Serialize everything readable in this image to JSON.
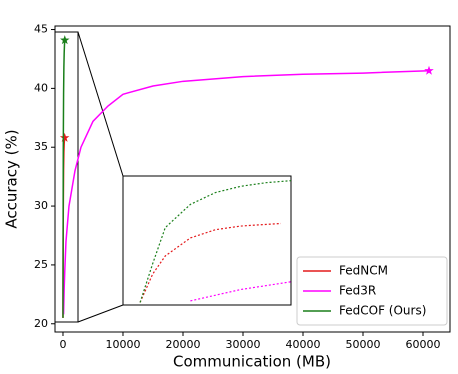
{
  "chart_data": {
    "type": "line",
    "xlabel": "Communication (MB)",
    "ylabel": "Accuracy (%)",
    "xlim": [
      -1330,
      64500
    ],
    "ylim": [
      19.3,
      45.3
    ],
    "xticks": [
      0,
      10000,
      20000,
      30000,
      40000,
      50000,
      60000
    ],
    "yticks": [
      20,
      25,
      30,
      35,
      40,
      45
    ],
    "legend": "lower right",
    "inset": {
      "xlim": [
        -34,
        300
      ],
      "ylim": [
        20,
        45
      ]
    },
    "series": [
      {
        "name": "FedNCM",
        "color": "#e41a1c",
        "x": [
          0,
          25,
          50,
          100,
          150,
          200,
          280
        ],
        "values": [
          20.5,
          26,
          29.5,
          33,
          34.6,
          35.3,
          35.8
        ]
      },
      {
        "name": "Fed3R",
        "color": "#ff00ff",
        "x": [
          100,
          200,
          300,
          500,
          1000,
          2000,
          3000,
          5000,
          7500,
          10000,
          15000,
          20000,
          30000,
          40000,
          50000,
          61000
        ],
        "values": [
          20.8,
          23,
          24.5,
          27,
          30,
          33,
          35,
          37.2,
          38.5,
          39.5,
          40.2,
          40.6,
          41,
          41.2,
          41.3,
          41.5
        ]
      },
      {
        "name": "FedCOF (Ours)",
        "color": "#1a7f1a",
        "x": [
          0,
          25,
          50,
          100,
          150,
          200,
          250,
          300
        ],
        "values": [
          20.5,
          28,
          35,
          39.5,
          41.8,
          43,
          43.7,
          44.1
        ]
      }
    ]
  }
}
